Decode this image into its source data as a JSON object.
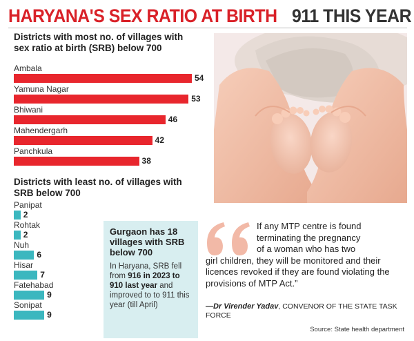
{
  "headline": {
    "red": "HARYANA'S SEX RATIO AT BIRTH",
    "dark": "911 THIS YEAR"
  },
  "colors": {
    "headline_red": "#d92128",
    "most_bar": "#e8262d",
    "least_bar": "#3bb7bf",
    "callout_bg": "#d8eef0",
    "quote_mark": "#f2b9a7"
  },
  "chart_data": [
    {
      "type": "bar",
      "orientation": "horizontal",
      "title": "Districts with most no. of villages with sex ratio at birth (SRB) below 700",
      "categories": [
        "Ambala",
        "Yamuna Nagar",
        "Bhiwani",
        "Mahendergarh",
        "Panchkula"
      ],
      "values": [
        54,
        53,
        46,
        42,
        38
      ]
    },
    {
      "type": "bar",
      "orientation": "horizontal",
      "title": "Districts with least no. of villages with SRB below 700",
      "categories": [
        "Panipat",
        "Rohtak",
        "Nuh",
        "Hisar",
        "Fatehabad",
        "Sonipat"
      ],
      "values": [
        2,
        2,
        6,
        7,
        9,
        9
      ]
    }
  ],
  "callout": {
    "title": "Gurgaon has 18 villages with SRB below 700",
    "body_1": "In Haryana, SRB fell from ",
    "body_2": "916 in 2023 to 910 last year",
    "body_3": " and improved to to 911 this year (till April)"
  },
  "quote": {
    "line_1": "If any MTP centre is found",
    "line_2": "terminating the pregnancy",
    "line_3": "of a woman who has two",
    "rest": "girl children, they will be monitored and their licences revoked if they are found violating the provisions of MTP Act.”",
    "author": "—Dr Virender Yadav",
    "role": ", CONVENOR OF THE STATE TASK FORCE"
  },
  "source": "Source: State health department"
}
